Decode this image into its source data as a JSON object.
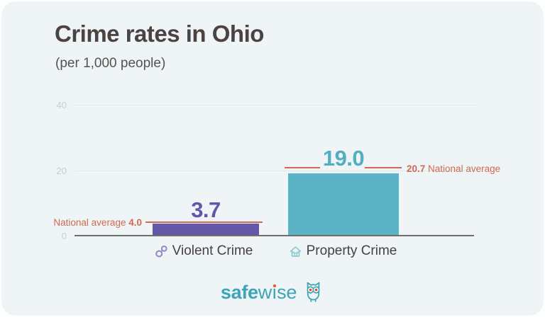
{
  "header": {
    "title": "Crime rates in Ohio",
    "subtitle": "(per 1,000 people)"
  },
  "y_axis": {
    "ticks": [
      "40",
      "20",
      "0"
    ]
  },
  "bars": {
    "violent": {
      "value_label": "3.7",
      "category": "Violent Crime"
    },
    "property": {
      "value_label": "19.0",
      "category": "Property Crime"
    }
  },
  "annotations": {
    "violent_avg_prefix": "National average ",
    "violent_avg_value": "4.0",
    "property_avg_value": "20.7",
    "property_avg_suffix": " National average"
  },
  "brand": {
    "bold": "safe",
    "w": "w",
    "i": "ı",
    "rest": "se"
  },
  "colors": {
    "card_background": "#eff4f6",
    "violent_bar": "#6457a7",
    "property_bar": "#5bb4c5",
    "national_average": "#d0694f",
    "brand_teal": "#3ea4b7",
    "brand_orange": "#e0592e",
    "title_text": "#4a4341",
    "axis_tick": "#c5ced4"
  },
  "chart_data": {
    "type": "bar",
    "title": "Crime rates in Ohio",
    "subtitle": "(per 1,000 people)",
    "categories": [
      "Violent Crime",
      "Property Crime"
    ],
    "values": [
      3.7,
      19.0
    ],
    "national_averages": [
      4.0,
      20.7
    ],
    "national_average_labels": [
      "National average 4.0",
      "20.7 National average"
    ],
    "xlabel": "",
    "ylabel": "",
    "ylim": [
      0,
      45
    ],
    "yticks": [
      0,
      20,
      40
    ],
    "grid": true,
    "legend": false,
    "bar_colors": [
      "#6457a7",
      "#5bb4c5"
    ],
    "annotation_color": "#d0694f"
  }
}
